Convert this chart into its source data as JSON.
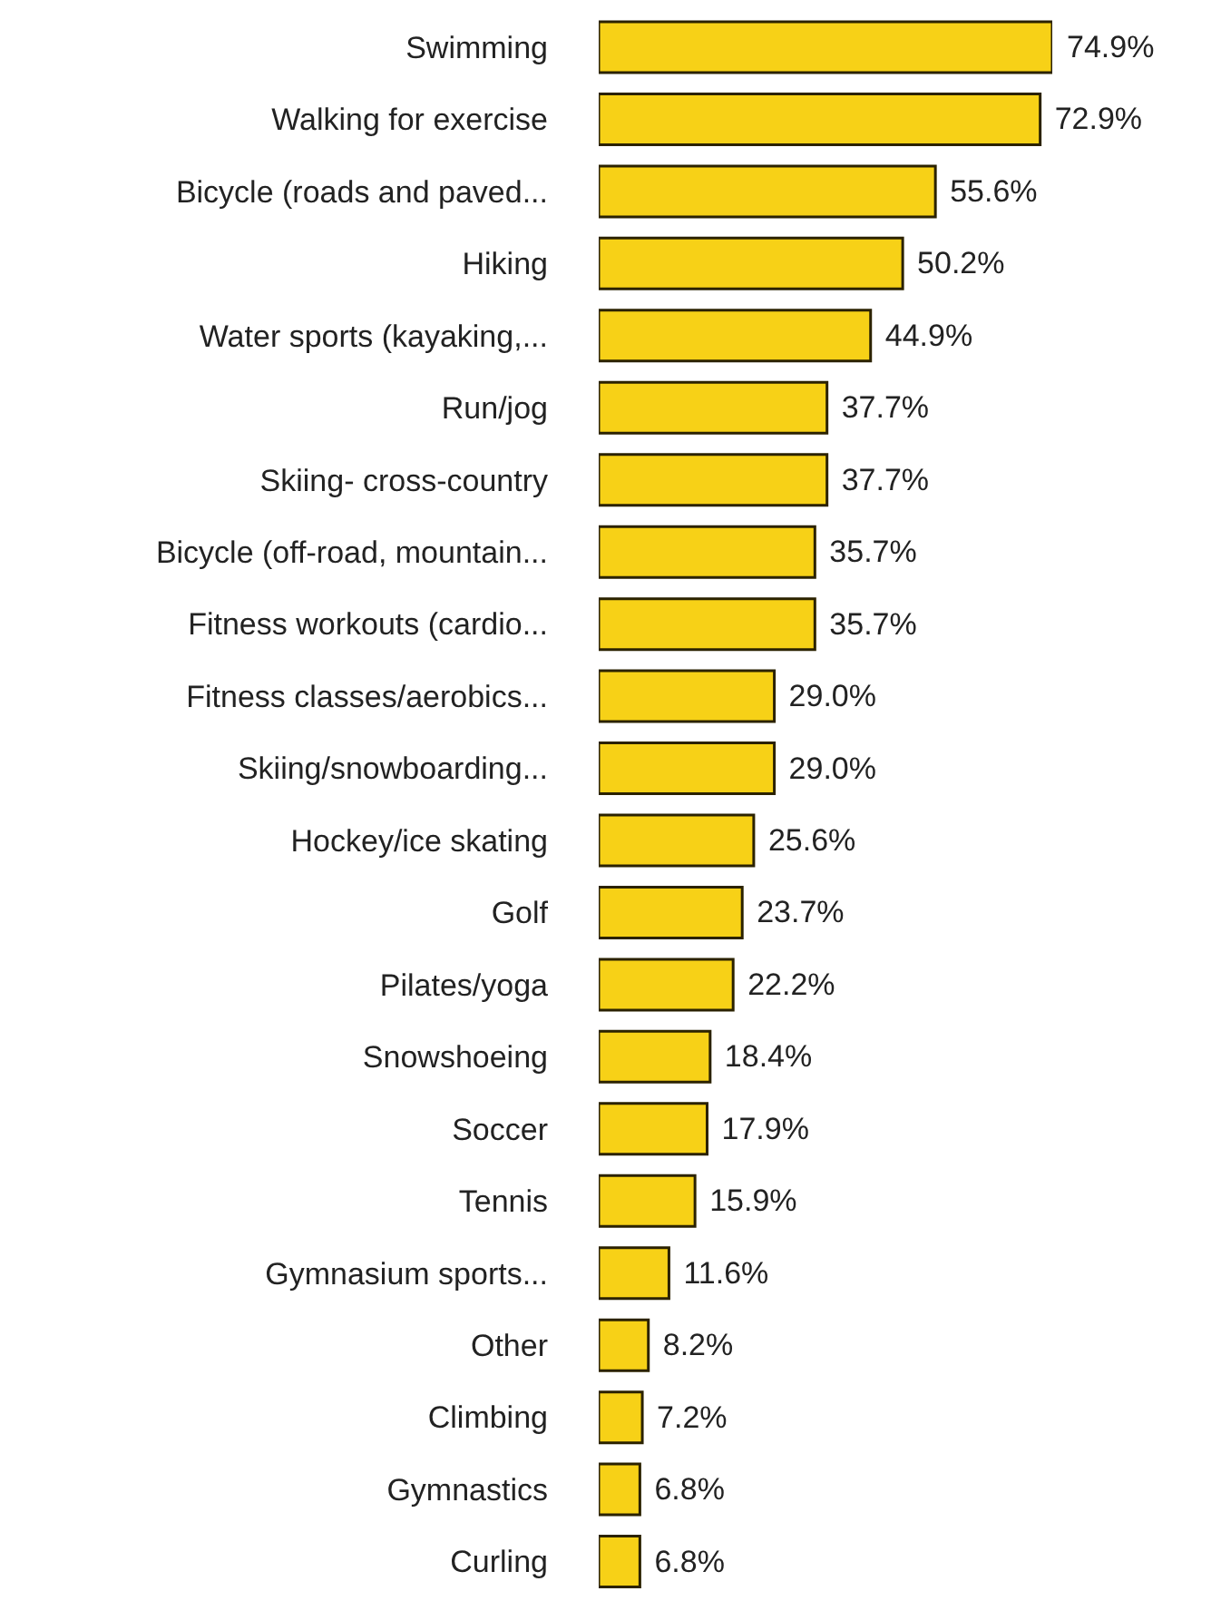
{
  "chart_data": {
    "type": "bar",
    "orientation": "horizontal",
    "categories": [
      "Swimming",
      "Walking for exercise",
      "Bicycle (roads and paved...",
      "Hiking",
      "Water sports (kayaking,...",
      "Run/jog",
      "Skiing- cross-country",
      "Bicycle (off-road, mountain...",
      "Fitness workouts (cardio...",
      "Fitness classes/aerobics...",
      "Skiing/snowboarding...",
      "Hockey/ice skating",
      "Golf",
      "Pilates/yoga",
      "Snowshoeing",
      "Soccer",
      "Tennis",
      "Gymnasium sports...",
      "Other",
      "Climbing",
      "Gymnastics",
      "Curling"
    ],
    "values": [
      74.9,
      72.9,
      55.6,
      50.2,
      44.9,
      37.7,
      37.7,
      35.7,
      35.7,
      29.0,
      29.0,
      25.6,
      23.7,
      22.2,
      18.4,
      17.9,
      15.9,
      11.6,
      8.2,
      7.2,
      6.8,
      6.8
    ],
    "value_labels": [
      "74.9%",
      "72.9%",
      "55.6%",
      "50.2%",
      "44.9%",
      "37.7%",
      "37.7%",
      "35.7%",
      "35.7%",
      "29.0%",
      "29.0%",
      "25.6%",
      "23.7%",
      "22.2%",
      "18.4%",
      "17.9%",
      "15.9%",
      "11.6%",
      "8.2%",
      "7.2%",
      "6.8%",
      "6.8%"
    ],
    "color": "#f7d117",
    "tick_labels": "y",
    "grid": false,
    "legend": false
  }
}
